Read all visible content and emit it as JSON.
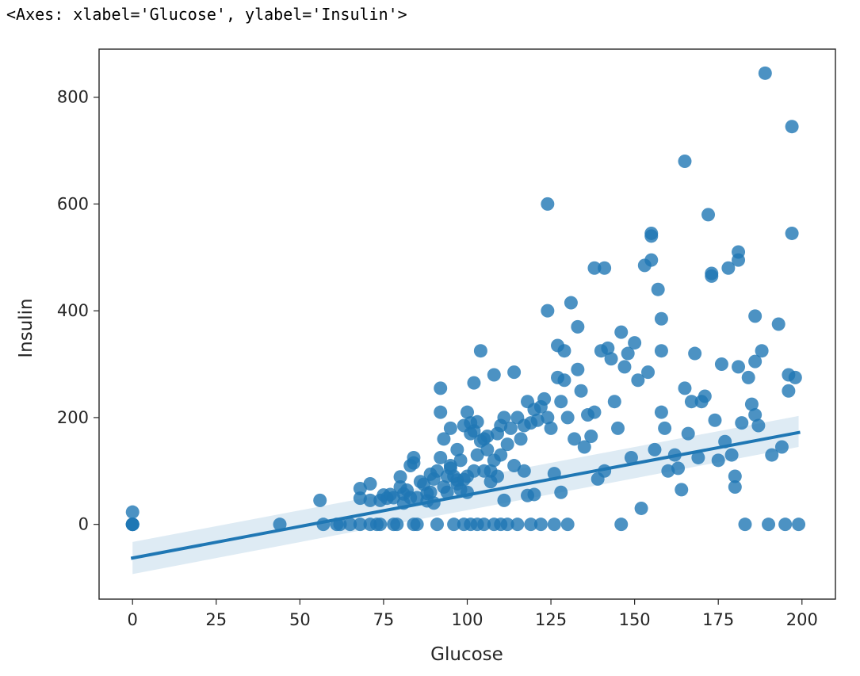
{
  "output_text": "<Axes: xlabel='Glucose', ylabel='Insulin'>",
  "chart_data": {
    "type": "scatter",
    "title": "",
    "xlabel": "Glucose",
    "ylabel": "Insulin",
    "xlim": [
      -10,
      210
    ],
    "ylim": [
      -140,
      890
    ],
    "xticks": [
      0,
      25,
      50,
      75,
      100,
      125,
      150,
      175,
      200
    ],
    "yticks": [
      0,
      200,
      400,
      600,
      800
    ],
    "xtick_labels": [
      "0",
      "25",
      "50",
      "75",
      "100",
      "125",
      "150",
      "175",
      "200"
    ],
    "ytick_labels": [
      "0",
      "200",
      "400",
      "600",
      "800"
    ],
    "grid": false,
    "legend": "none",
    "colors": {
      "points": "#1f77b4",
      "line": "#1f77b4",
      "ci_band": "#1f77b4"
    },
    "points": [
      [
        0,
        0
      ],
      [
        0,
        0
      ],
      [
        0,
        0
      ],
      [
        0,
        23
      ],
      [
        0,
        0
      ],
      [
        44,
        0
      ],
      [
        56,
        45
      ],
      [
        57,
        0
      ],
      [
        61,
        0
      ],
      [
        62,
        0
      ],
      [
        65,
        0
      ],
      [
        68,
        0
      ],
      [
        68,
        67
      ],
      [
        68,
        49
      ],
      [
        71,
        0
      ],
      [
        71,
        76
      ],
      [
        71,
        45
      ],
      [
        73,
        0
      ],
      [
        74,
        0
      ],
      [
        74,
        45
      ],
      [
        75,
        55
      ],
      [
        76,
        49
      ],
      [
        77,
        56
      ],
      [
        78,
        0
      ],
      [
        78,
        50
      ],
      [
        79,
        0
      ],
      [
        80,
        89
      ],
      [
        80,
        70
      ],
      [
        81,
        57
      ],
      [
        81,
        40
      ],
      [
        82,
        64
      ],
      [
        83,
        110
      ],
      [
        83,
        50
      ],
      [
        84,
        125
      ],
      [
        84,
        0
      ],
      [
        84,
        115
      ],
      [
        85,
        50
      ],
      [
        85,
        0
      ],
      [
        86,
        80
      ],
      [
        87,
        75
      ],
      [
        88,
        58
      ],
      [
        88,
        44
      ],
      [
        89,
        94
      ],
      [
        89,
        60
      ],
      [
        90,
        85
      ],
      [
        90,
        40
      ],
      [
        91,
        100
      ],
      [
        91,
        0
      ],
      [
        92,
        255
      ],
      [
        92,
        210
      ],
      [
        92,
        125
      ],
      [
        93,
        160
      ],
      [
        93,
        70
      ],
      [
        94,
        90
      ],
      [
        94,
        60
      ],
      [
        95,
        180
      ],
      [
        95,
        110
      ],
      [
        95,
        105
      ],
      [
        96,
        90
      ],
      [
        96,
        0
      ],
      [
        97,
        140
      ],
      [
        97,
        83
      ],
      [
        97,
        76
      ],
      [
        98,
        120
      ],
      [
        98,
        65
      ],
      [
        99,
        185
      ],
      [
        99,
        84
      ],
      [
        99,
        0
      ],
      [
        100,
        210
      ],
      [
        100,
        90
      ],
      [
        100,
        60
      ],
      [
        101,
        190
      ],
      [
        101,
        170
      ],
      [
        101,
        0
      ],
      [
        102,
        265
      ],
      [
        102,
        175
      ],
      [
        102,
        100
      ],
      [
        103,
        192
      ],
      [
        103,
        130
      ],
      [
        103,
        0
      ],
      [
        104,
        325
      ],
      [
        104,
        156
      ],
      [
        105,
        160
      ],
      [
        105,
        100
      ],
      [
        105,
        0
      ],
      [
        106,
        165
      ],
      [
        106,
        140
      ],
      [
        107,
        100
      ],
      [
        107,
        80
      ],
      [
        108,
        280
      ],
      [
        108,
        120
      ],
      [
        108,
        0
      ],
      [
        109,
        170
      ],
      [
        109,
        90
      ],
      [
        110,
        185
      ],
      [
        110,
        130
      ],
      [
        110,
        0
      ],
      [
        111,
        200
      ],
      [
        111,
        45
      ],
      [
        112,
        150
      ],
      [
        112,
        0
      ],
      [
        113,
        180
      ],
      [
        114,
        285
      ],
      [
        114,
        110
      ],
      [
        115,
        200
      ],
      [
        115,
        0
      ],
      [
        116,
        160
      ],
      [
        117,
        185
      ],
      [
        117,
        100
      ],
      [
        118,
        230
      ],
      [
        118,
        54
      ],
      [
        119,
        190
      ],
      [
        119,
        0
      ],
      [
        120,
        215
      ],
      [
        120,
        56
      ],
      [
        121,
        195
      ],
      [
        122,
        220
      ],
      [
        122,
        0
      ],
      [
        123,
        235
      ],
      [
        124,
        600
      ],
      [
        124,
        400
      ],
      [
        124,
        200
      ],
      [
        125,
        180
      ],
      [
        126,
        95
      ],
      [
        126,
        0
      ],
      [
        127,
        335
      ],
      [
        127,
        275
      ],
      [
        128,
        230
      ],
      [
        128,
        60
      ],
      [
        129,
        325
      ],
      [
        129,
        270
      ],
      [
        130,
        200
      ],
      [
        130,
        0
      ],
      [
        131,
        415
      ],
      [
        132,
        160
      ],
      [
        133,
        370
      ],
      [
        133,
        290
      ],
      [
        134,
        250
      ],
      [
        135,
        145
      ],
      [
        136,
        205
      ],
      [
        137,
        165
      ],
      [
        138,
        480
      ],
      [
        138,
        210
      ],
      [
        139,
        85
      ],
      [
        140,
        325
      ],
      [
        141,
        480
      ],
      [
        141,
        100
      ],
      [
        142,
        330
      ],
      [
        143,
        310
      ],
      [
        144,
        230
      ],
      [
        145,
        180
      ],
      [
        146,
        360
      ],
      [
        146,
        0
      ],
      [
        147,
        295
      ],
      [
        148,
        320
      ],
      [
        149,
        125
      ],
      [
        150,
        340
      ],
      [
        151,
        270
      ],
      [
        152,
        30
      ],
      [
        153,
        485
      ],
      [
        154,
        285
      ],
      [
        155,
        545
      ],
      [
        155,
        540
      ],
      [
        155,
        495
      ],
      [
        156,
        140
      ],
      [
        157,
        440
      ],
      [
        158,
        385
      ],
      [
        158,
        325
      ],
      [
        158,
        210
      ],
      [
        159,
        180
      ],
      [
        160,
        100
      ],
      [
        162,
        130
      ],
      [
        163,
        105
      ],
      [
        164,
        65
      ],
      [
        165,
        680
      ],
      [
        165,
        255
      ],
      [
        166,
        170
      ],
      [
        167,
        230
      ],
      [
        168,
        320
      ],
      [
        169,
        125
      ],
      [
        170,
        230
      ],
      [
        171,
        240
      ],
      [
        172,
        580
      ],
      [
        173,
        470
      ],
      [
        173,
        465
      ],
      [
        174,
        195
      ],
      [
        175,
        120
      ],
      [
        176,
        300
      ],
      [
        177,
        155
      ],
      [
        178,
        480
      ],
      [
        179,
        130
      ],
      [
        180,
        90
      ],
      [
        180,
        70
      ],
      [
        181,
        510
      ],
      [
        181,
        495
      ],
      [
        181,
        295
      ],
      [
        182,
        190
      ],
      [
        183,
        0
      ],
      [
        184,
        275
      ],
      [
        185,
        225
      ],
      [
        186,
        390
      ],
      [
        186,
        305
      ],
      [
        186,
        205
      ],
      [
        187,
        185
      ],
      [
        188,
        325
      ],
      [
        189,
        845
      ],
      [
        190,
        0
      ],
      [
        191,
        130
      ],
      [
        193,
        375
      ],
      [
        194,
        145
      ],
      [
        195,
        0
      ],
      [
        196,
        280
      ],
      [
        196,
        250
      ],
      [
        197,
        745
      ],
      [
        197,
        545
      ],
      [
        198,
        275
      ],
      [
        199,
        0
      ]
    ],
    "regression": {
      "x": [
        0,
        199
      ],
      "y": [
        -63,
        172
      ],
      "ci_low": [
        -93,
        145
      ],
      "ci_high": [
        -33,
        203
      ]
    }
  }
}
